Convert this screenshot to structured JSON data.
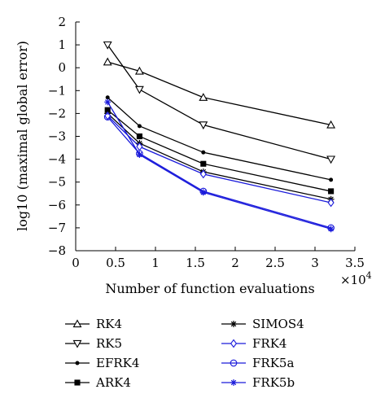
{
  "chart_data": {
    "type": "line",
    "xlabel": "Number of function evaluations",
    "ylabel": "log10 (maximal global error)",
    "x_exponent_label": "×10",
    "x_exponent_power": "4",
    "xlim": [
      0,
      3.5
    ],
    "ylim": [
      -8,
      2
    ],
    "xticks": [
      0,
      0.5,
      1,
      1.5,
      2,
      2.5,
      3,
      3.5
    ],
    "xtick_labels": [
      "0",
      "0.5",
      "1",
      "1.5",
      "2",
      "2.5",
      "3",
      "3.5"
    ],
    "yticks": [
      2,
      1,
      0,
      -1,
      -2,
      -3,
      -4,
      -5,
      -6,
      -7,
      -8
    ],
    "ytick_labels": [
      "2",
      "1",
      "0",
      "−1",
      "−2",
      "−3",
      "−4",
      "−5",
      "−6",
      "−7",
      "−8"
    ],
    "grid": false,
    "legend_position": "bottom",
    "x": [
      0.4,
      0.8,
      1.6,
      3.2
    ],
    "series": [
      {
        "name": "RK4",
        "values": [
          0.25,
          -0.15,
          -1.3,
          -2.5
        ],
        "color": "#000000",
        "marker": "triangle-up"
      },
      {
        "name": "RK5",
        "values": [
          1.0,
          -0.95,
          -2.5,
          -4.0
        ],
        "color": "#000000",
        "marker": "triangle-down"
      },
      {
        "name": "EFRK4",
        "values": [
          -1.3,
          -2.55,
          -3.7,
          -4.9
        ],
        "color": "#000000",
        "marker": "dot"
      },
      {
        "name": "ARK4",
        "values": [
          -1.85,
          -3.0,
          -4.2,
          -5.4
        ],
        "color": "#000000",
        "marker": "square"
      },
      {
        "name": "SIMOS4",
        "values": [
          -2.0,
          -3.3,
          -4.55,
          -5.75
        ],
        "color": "#000000",
        "marker": "star"
      },
      {
        "name": "FRK4",
        "values": [
          -2.1,
          -3.45,
          -4.65,
          -5.9
        ],
        "color": "#1a1adb",
        "marker": "diamond"
      },
      {
        "name": "FRK5a",
        "values": [
          -2.15,
          -3.75,
          -5.4,
          -7.0
        ],
        "color": "#1a1adb",
        "marker": "circle"
      },
      {
        "name": "FRK5b",
        "values": [
          -1.5,
          -3.8,
          -5.45,
          -7.05
        ],
        "color": "#1a1adb",
        "marker": "star"
      }
    ]
  }
}
